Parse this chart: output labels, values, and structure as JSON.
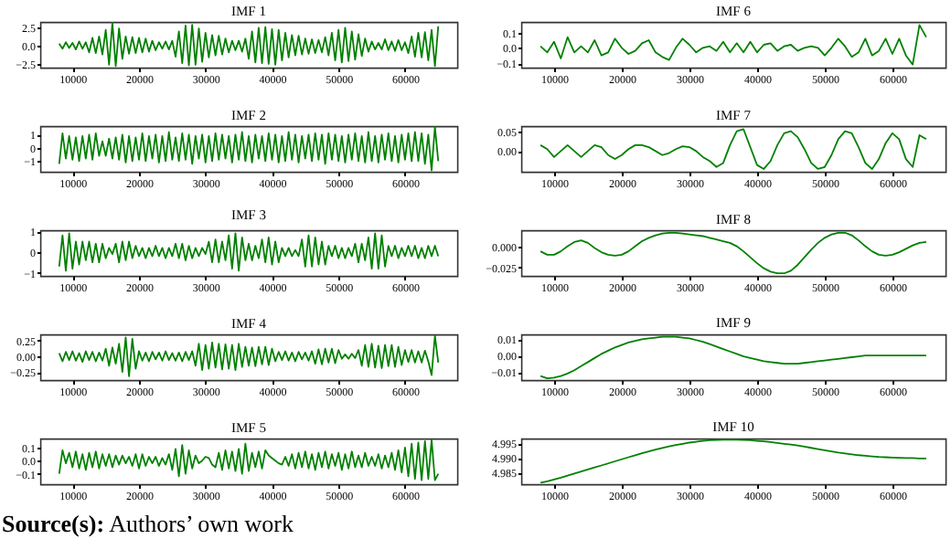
{
  "chart_data": [
    {
      "type": "line",
      "title": "IMF 1",
      "x": [
        8000,
        8500,
        9000,
        9500,
        10000,
        10500,
        11000,
        11500,
        12000,
        12500,
        13000,
        13500,
        14000,
        14500,
        15000,
        15500,
        16000,
        16500,
        17000,
        17500,
        18000,
        18500,
        19000,
        19500,
        20000,
        20500,
        21000,
        21500,
        22000,
        22500,
        23000,
        23500,
        24000,
        24500,
        25000,
        25500,
        26000,
        26500,
        27000,
        27500,
        28000,
        28500,
        29000,
        29500,
        30000,
        30500,
        31000,
        31500,
        32000,
        32500,
        33000,
        33500,
        34000,
        34500,
        35000,
        35500,
        36000,
        36500,
        37000,
        37500,
        38000,
        38500,
        39000,
        39500,
        40000,
        40500,
        41000,
        41500,
        42000,
        42500,
        43000,
        43500,
        44000,
        44500,
        45000,
        45500,
        46000,
        46500,
        47000,
        47500,
        48000,
        48500,
        49000,
        49500,
        50000,
        50500,
        51000,
        51500,
        52000,
        52500,
        53000,
        53500,
        54000,
        54500,
        55000,
        55500,
        56000,
        56500,
        57000,
        57500,
        58000,
        58500,
        59000,
        59500,
        60000,
        60500,
        61000,
        61500,
        62000,
        62500,
        63000,
        63500,
        64000,
        64500,
        65000
      ],
      "series": [
        {
          "color": "#008000",
          "values": [
            0.3,
            -0.4,
            0.5,
            -0.3,
            0.4,
            -0.5,
            0.6,
            -0.4,
            0.5,
            -0.9,
            1.1,
            -1.0,
            1.3,
            -1.2,
            2.2,
            -2.6,
            3.2,
            -2.8,
            2.4,
            -1.8,
            1.3,
            -1.1,
            1.2,
            -1.0,
            1.1,
            -0.9,
            1.0,
            -0.8,
            0.7,
            -0.6,
            0.5,
            -0.4,
            0.6,
            -0.5,
            0.7,
            -1.5,
            2.0,
            -2.4,
            2.8,
            -2.7,
            2.9,
            -2.6,
            2.4,
            -2.2,
            1.8,
            -1.6,
            1.5,
            -1.3,
            1.4,
            -1.2,
            1.0,
            -0.9,
            0.7,
            -0.6,
            0.7,
            -0.8,
            1.0,
            -1.8,
            2.0,
            -2.3,
            2.5,
            -2.4,
            2.6,
            -2.5,
            2.3,
            -2.6,
            2.2,
            -2.0,
            1.8,
            -1.6,
            1.5,
            -1.3,
            1.4,
            -1.2,
            1.0,
            -1.1,
            0.9,
            -1.0,
            0.8,
            -0.9,
            1.2,
            -1.3,
            1.8,
            -2.0,
            2.2,
            -2.3,
            2.5,
            -2.1,
            2.0,
            -1.9,
            1.6,
            -1.4,
            1.0,
            -0.8,
            0.6,
            -0.5,
            0.4,
            -0.5,
            0.9,
            -0.6,
            0.6,
            -0.7,
            0.8,
            -0.6,
            0.5,
            -1.0,
            1.3,
            -1.5,
            1.8,
            -1.6,
            1.9,
            -2.0,
            2.2,
            -2.8,
            2.7
          ]
        }
      ],
      "xlim": [
        5150,
        67850
      ],
      "xticks": [
        10000,
        20000,
        30000,
        40000,
        50000,
        60000
      ],
      "ylim": [
        -3.0,
        3.3
      ],
      "yticks": [
        {
          "value": -2.5,
          "label": "−2.5"
        },
        {
          "value": 0,
          "label": "0.0"
        },
        2.5
      ]
    },
    {
      "type": "line",
      "title": "IMF 2",
      "x": [
        8000,
        8500,
        9000,
        9500,
        10000,
        10500,
        11000,
        11500,
        12000,
        12500,
        13000,
        13500,
        14000,
        14500,
        15000,
        15500,
        16000,
        16500,
        17000,
        17500,
        18000,
        18500,
        19000,
        19500,
        20000,
        20500,
        21000,
        21500,
        22000,
        22500,
        23000,
        23500,
        24000,
        24500,
        25000,
        25500,
        26000,
        26500,
        27000,
        27500,
        28000,
        28500,
        29000,
        29500,
        30000,
        30500,
        31000,
        31500,
        32000,
        32500,
        33000,
        33500,
        34000,
        34500,
        35000,
        35500,
        36000,
        36500,
        37000,
        37500,
        38000,
        38500,
        39000,
        39500,
        40000,
        40500,
        41000,
        41500,
        42000,
        42500,
        43000,
        43500,
        44000,
        44500,
        45000,
        45500,
        46000,
        46500,
        47000,
        47500,
        48000,
        48500,
        49000,
        49500,
        50000,
        50500,
        51000,
        51500,
        52000,
        52500,
        53000,
        53500,
        54000,
        54500,
        55000,
        55500,
        56000,
        56500,
        57000,
        57500,
        58000,
        58500,
        59000,
        59500,
        60000,
        60500,
        61000,
        61500,
        62000,
        62500,
        63000,
        63500,
        64000,
        64500,
        65000
      ],
      "series": [
        {
          "color": "#008000",
          "values": [
            -1.2,
            1.1,
            -0.8,
            0.9,
            -0.9,
            0.8,
            -1.0,
            0.9,
            -0.8,
            1.0,
            -0.9,
            1.1,
            -0.6,
            0.5,
            -0.6,
            0.7,
            -0.8,
            0.8,
            -0.9,
            1.0,
            -1.1,
            0.9,
            -1.0,
            0.8,
            -0.9,
            1.1,
            -1.0,
            0.9,
            -0.8,
            1.0,
            -1.1,
            0.9,
            -1.0,
            1.2,
            -0.9,
            0.8,
            -1.0,
            1.1,
            -0.9,
            1.0,
            -1.2,
            0.9,
            -0.8,
            1.0,
            -1.1,
            0.9,
            -1.0,
            1.1,
            -0.9,
            1.0,
            -0.8,
            0.9,
            -1.1,
            1.0,
            -0.9,
            1.2,
            -1.0,
            0.9,
            -1.1,
            1.0,
            -0.8,
            0.9,
            -1.0,
            1.1,
            -0.9,
            1.0,
            -1.1,
            0.9,
            -1.0,
            1.2,
            -0.9,
            1.0,
            -1.1,
            0.9,
            -0.8,
            1.0,
            -1.0,
            1.1,
            -0.9,
            1.0,
            -1.2,
            1.1,
            -0.9,
            1.0,
            -1.0,
            0.9,
            -1.1,
            1.0,
            -0.9,
            1.1,
            -1.0,
            0.9,
            -1.1,
            1.2,
            -1.0,
            0.9,
            -1.1,
            1.0,
            -0.9,
            1.1,
            -1.0,
            0.9,
            -1.1,
            1.0,
            -0.9,
            1.1,
            -1.0,
            1.2,
            -1.0,
            1.1,
            -1.2,
            1.0,
            -1.7,
            1.6,
            -1.0
          ]
        }
      ],
      "xlim": [
        5150,
        67850
      ],
      "xticks": [
        10000,
        20000,
        30000,
        40000,
        50000,
        60000
      ],
      "ylim": [
        -1.8,
        1.65
      ],
      "yticks": [
        {
          "value": -1,
          "label": "−1"
        },
        0,
        1
      ]
    },
    {
      "type": "line",
      "title": "IMF 3",
      "x": [
        8000,
        8500,
        9000,
        9500,
        10000,
        10500,
        11000,
        11500,
        12000,
        12500,
        13000,
        13500,
        14000,
        14500,
        15000,
        15500,
        16000,
        16500,
        17000,
        17500,
        18000,
        18500,
        19000,
        19500,
        20000,
        20500,
        21000,
        21500,
        22000,
        22500,
        23000,
        23500,
        24000,
        24500,
        25000,
        25500,
        26000,
        26500,
        27000,
        27500,
        28000,
        28500,
        29000,
        29500,
        30000,
        30500,
        31000,
        31500,
        32000,
        32500,
        33000,
        33500,
        34000,
        34500,
        35000,
        35500,
        36000,
        36500,
        37000,
        37500,
        38000,
        38500,
        39000,
        39500,
        40000,
        40500,
        41000,
        41500,
        42000,
        42500,
        43000,
        43500,
        44000,
        44500,
        45000,
        45500,
        46000,
        46500,
        47000,
        47500,
        48000,
        48500,
        49000,
        49500,
        50000,
        50500,
        51000,
        51500,
        52000,
        52500,
        53000,
        53500,
        54000,
        54500,
        55000,
        55500,
        56000,
        56500,
        57000,
        57500,
        58000,
        58500,
        59000,
        59500,
        60000,
        60500,
        61000,
        61500,
        62000,
        62500,
        63000,
        63500,
        64000,
        64500,
        65000
      ],
      "series": [
        {
          "color": "#008000",
          "values": [
            -0.7,
            0.8,
            -0.9,
            0.9,
            -0.8,
            0.5,
            -0.6,
            0.5,
            -0.4,
            0.5,
            -0.5,
            0.4,
            -0.5,
            0.4,
            -0.3,
            0.2,
            -0.1,
            0.4,
            -0.5,
            0.5,
            -0.4,
            0.5,
            -0.3,
            0.3,
            -0.2,
            0.2,
            -0.3,
            0.2,
            -0.2,
            0.3,
            -0.2,
            0.2,
            -0.3,
            0.2,
            -0.2,
            0.4,
            -0.3,
            0.4,
            -0.4,
            0.3,
            -0.3,
            0.2,
            -0.2,
            0.2,
            -0.1,
            0.5,
            -0.5,
            0.6,
            -0.5,
            0.5,
            -0.4,
            0.8,
            -0.8,
            0.9,
            -0.9,
            0.7,
            -0.4,
            0.4,
            -0.4,
            0.3,
            -0.3,
            0.6,
            -0.5,
            0.7,
            -0.6,
            0.5,
            -0.5,
            0.2,
            -0.2,
            0.2,
            -0.2,
            0.1,
            -0.2,
            0.6,
            -0.7,
            0.8,
            -0.7,
            0.7,
            -0.6,
            0.5,
            -0.6,
            0.3,
            -0.2,
            0.3,
            -0.3,
            0.2,
            -0.3,
            0.2,
            -0.2,
            0.4,
            -0.5,
            0.4,
            -0.4,
            0.7,
            -0.8,
            0.9,
            -0.8,
            0.8,
            -0.7,
            0.3,
            -0.2,
            0.3,
            -0.3,
            0.2,
            -0.2,
            0.3,
            -0.2,
            0.3,
            -0.3,
            0.2,
            -0.3,
            0.3,
            -0.2,
            0.3,
            -0.2
          ]
        }
      ],
      "xlim": [
        5150,
        67850
      ],
      "xticks": [
        10000,
        20000,
        30000,
        40000,
        50000,
        60000
      ],
      "ylim": [
        -1.15,
        1.05
      ],
      "yticks": [
        {
          "value": -1,
          "label": "−1"
        },
        0,
        1
      ]
    },
    {
      "type": "line",
      "title": "IMF 4",
      "x": [
        8000,
        8500,
        9000,
        9500,
        10000,
        10500,
        11000,
        11500,
        12000,
        12500,
        13000,
        13500,
        14000,
        14500,
        15000,
        15500,
        16000,
        16500,
        17000,
        17500,
        18000,
        18500,
        19000,
        19500,
        20000,
        20500,
        21000,
        21500,
        22000,
        22500,
        23000,
        23500,
        24000,
        24500,
        25000,
        25500,
        26000,
        26500,
        27000,
        27500,
        28000,
        28500,
        29000,
        29500,
        30000,
        30500,
        31000,
        31500,
        32000,
        32500,
        33000,
        33500,
        34000,
        34500,
        35000,
        35500,
        36000,
        36500,
        37000,
        37500,
        38000,
        38500,
        39000,
        39500,
        40000,
        40500,
        41000,
        41500,
        42000,
        42500,
        43000,
        43500,
        44000,
        44500,
        45000,
        45500,
        46000,
        46500,
        47000,
        47500,
        48000,
        48500,
        49000,
        49500,
        50000,
        50500,
        51000,
        51500,
        52000,
        52500,
        53000,
        53500,
        54000,
        54500,
        55000,
        55500,
        56000,
        56500,
        57000,
        57500,
        58000,
        58500,
        59000,
        59500,
        60000,
        60500,
        61000,
        61500,
        62000,
        62500,
        63000,
        63500,
        64000,
        64500,
        65000
      ],
      "series": [
        {
          "color": "#008000",
          "values": [
            0.05,
            -0.08,
            0.07,
            -0.06,
            0.08,
            -0.07,
            0.05,
            -0.09,
            0.08,
            -0.06,
            0.07,
            -0.08,
            0.06,
            -0.07,
            0.12,
            -0.15,
            0.14,
            -0.12,
            0.2,
            -0.25,
            0.3,
            -0.32,
            0.28,
            -0.2,
            0.08,
            -0.07,
            0.06,
            -0.08,
            0.07,
            -0.05,
            0.06,
            -0.07,
            0.08,
            -0.06,
            0.05,
            -0.07,
            0.06,
            -0.08,
            0.07,
            -0.06,
            0.08,
            -0.15,
            0.2,
            -0.22,
            0.18,
            -0.2,
            0.22,
            -0.18,
            0.2,
            -0.21,
            0.19,
            -0.2,
            0.18,
            -0.22,
            0.2,
            -0.17,
            0.15,
            -0.15,
            0.14,
            -0.16,
            0.15,
            -0.13,
            0.15,
            -0.14,
            0.12,
            -0.08,
            0.07,
            -0.06,
            0.08,
            -0.07,
            0.06,
            -0.08,
            0.07,
            -0.05,
            0.06,
            -0.07,
            0.08,
            -0.12,
            0.11,
            -0.13,
            0.12,
            -0.1,
            0.12,
            -0.11,
            0.1,
            -0.04,
            0.03,
            -0.04,
            0.04,
            -0.03,
            0.1,
            -0.15,
            0.18,
            -0.17,
            0.2,
            -0.18,
            0.17,
            -0.19,
            0.18,
            -0.16,
            0.18,
            -0.17,
            0.15,
            -0.14,
            0.1,
            -0.09,
            0.1,
            -0.1,
            0.08,
            -0.1,
            0.09,
            -0.08,
            -0.3,
            0.33,
            -0.1
          ]
        }
      ],
      "xlim": [
        5150,
        67850
      ],
      "xticks": [
        10000,
        20000,
        30000,
        40000,
        50000,
        60000
      ],
      "ylim": [
        -0.38,
        0.35
      ],
      "yticks": [
        {
          "value": -0.25,
          "label": "−0.25"
        },
        {
          "value": 0,
          "label": "0.00"
        },
        0.25
      ]
    },
    {
      "type": "line",
      "title": "IMF 5",
      "x": [
        8000,
        8500,
        9000,
        9500,
        10000,
        10500,
        11000,
        11500,
        12000,
        12500,
        13000,
        13500,
        14000,
        14500,
        15000,
        15500,
        16000,
        16500,
        17000,
        17500,
        18000,
        18500,
        19000,
        19500,
        20000,
        20500,
        21000,
        21500,
        22000,
        22500,
        23000,
        23500,
        24000,
        24500,
        25000,
        25500,
        26000,
        26500,
        27000,
        27500,
        28000,
        28500,
        29000,
        29500,
        30000,
        30500,
        31000,
        31500,
        32000,
        32500,
        33000,
        33500,
        34000,
        34500,
        35000,
        35500,
        36000,
        36500,
        37000,
        37500,
        38000,
        38500,
        39000,
        39500,
        40000,
        40500,
        41000,
        41500,
        42000,
        42500,
        43000,
        43500,
        44000,
        44500,
        45000,
        45500,
        46000,
        46500,
        47000,
        47500,
        48000,
        48500,
        49000,
        49500,
        50000,
        50500,
        51000,
        51500,
        52000,
        52500,
        53000,
        53500,
        54000,
        54500,
        55000,
        55500,
        56000,
        56500,
        57000,
        57500,
        58000,
        58500,
        59000,
        59500,
        60000,
        60500,
        61000,
        61500,
        62000,
        62500,
        63000,
        63500,
        64000,
        64500,
        65000
      ],
      "series": [
        {
          "color": "#008000",
          "values": [
            -0.1,
            0.08,
            -0.02,
            0.06,
            -0.05,
            0.07,
            -0.06,
            0.05,
            -0.07,
            0.06,
            -0.05,
            0.07,
            -0.06,
            0.05,
            -0.04,
            0.05,
            -0.05,
            0.04,
            -0.03,
            0.04,
            -0.02,
            0.03,
            -0.04,
            0.05,
            -0.06,
            0.05,
            -0.04,
            0.03,
            -0.02,
            0.03,
            -0.04,
            0.02,
            -0.03,
            0.05,
            -0.07,
            0.09,
            -0.12,
            0.12,
            -0.1,
            0.08,
            -0.06,
            0.04,
            -0.02,
            0.0,
            0.03,
            0.02,
            -0.03,
            -0.05,
            0.06,
            -0.07,
            0.08,
            -0.06,
            0.07,
            -0.08,
            0.09,
            -0.1,
            0.13,
            -0.08,
            0.06,
            -0.05,
            0.07,
            -0.06,
            0.08,
            0.04,
            0.02,
            0.0,
            -0.02,
            -0.03,
            0.03,
            -0.04,
            0.05,
            -0.06,
            0.06,
            -0.05,
            0.07,
            -0.06,
            0.05,
            -0.07,
            0.06,
            -0.05,
            0.07,
            -0.06,
            0.05,
            -0.04,
            0.06,
            -0.07,
            0.05,
            -0.06,
            0.07,
            -0.05,
            0.04,
            -0.05,
            0.06,
            -0.04,
            0.03,
            -0.04,
            0.05,
            -0.06,
            0.04,
            -0.05,
            0.06,
            -0.07,
            0.08,
            -0.09,
            0.1,
            -0.12,
            0.13,
            -0.14,
            0.14,
            -0.15,
            0.15,
            -0.14,
            0.16,
            -0.15,
            -0.1
          ]
        }
      ],
      "xlim": [
        5150,
        67850
      ],
      "xticks": [
        10000,
        20000,
        30000,
        40000,
        50000,
        60000
      ],
      "ylim": [
        -0.18,
        0.17
      ],
      "yticks": [
        {
          "value": -0.1,
          "label": "−0.1"
        },
        {
          "value": 0,
          "label": "0.0"
        },
        0.1
      ],
      "annotations": [
        "Source(s): Authors’ own work"
      ]
    },
    {
      "type": "line",
      "title": "IMF 6",
      "x": [
        8000,
        9000,
        10000,
        11000,
        12000,
        13000,
        14000,
        15000,
        16000,
        17000,
        18000,
        19000,
        20000,
        21000,
        22000,
        23000,
        24000,
        25000,
        26000,
        27000,
        28000,
        29000,
        30000,
        31000,
        32000,
        33000,
        34000,
        35000,
        36000,
        37000,
        38000,
        39000,
        40000,
        41000,
        42000,
        43000,
        44000,
        45000,
        46000,
        47000,
        48000,
        49000,
        50000,
        51000,
        52000,
        53000,
        54000,
        55000,
        56000,
        57000,
        58000,
        59000,
        60000,
        61000,
        62000,
        63000,
        64000,
        65000
      ],
      "series": [
        {
          "color": "#008000",
          "values": [
            0.01,
            -0.03,
            0.04,
            -0.07,
            0.07,
            -0.03,
            0.01,
            -0.03,
            0.05,
            -0.05,
            -0.03,
            0.06,
            0.0,
            -0.04,
            -0.02,
            0.03,
            0.05,
            -0.03,
            -0.06,
            -0.08,
            0.0,
            0.06,
            0.02,
            -0.03,
            0.0,
            0.01,
            -0.02,
            0.04,
            -0.03,
            0.03,
            -0.03,
            0.04,
            -0.03,
            0.02,
            0.03,
            -0.02,
            0.01,
            0.02,
            -0.02,
            0.0,
            0.01,
            0.0,
            -0.05,
            0.0,
            0.06,
            0.01,
            -0.06,
            -0.03,
            0.06,
            -0.05,
            -0.02,
            0.06,
            -0.04,
            0.06,
            -0.05,
            -0.11,
            0.15,
            0.07
          ]
        }
      ],
      "xlim": [
        5150,
        67850
      ],
      "xticks": [
        10000,
        20000,
        30000,
        40000,
        50000,
        60000
      ],
      "ylim": [
        -0.13,
        0.17
      ],
      "yticks": [
        {
          "value": -0.1,
          "label": "−0.1"
        },
        {
          "value": 0,
          "label": "0.0"
        },
        0.1
      ]
    },
    {
      "type": "line",
      "title": "IMF 7",
      "x": [
        8000,
        9000,
        10000,
        11000,
        12000,
        13000,
        14000,
        15000,
        16000,
        17000,
        18000,
        19000,
        20000,
        21000,
        22000,
        23000,
        24000,
        25000,
        26000,
        27000,
        28000,
        29000,
        30000,
        31000,
        32000,
        33000,
        34000,
        35000,
        36000,
        37000,
        38000,
        39000,
        40000,
        41000,
        42000,
        43000,
        44000,
        45000,
        46000,
        47000,
        48000,
        49000,
        50000,
        51000,
        52000,
        53000,
        54000,
        55000,
        56000,
        57000,
        58000,
        59000,
        60000,
        61000,
        62000,
        63000,
        64000,
        65000
      ],
      "series": [
        {
          "color": "#008000",
          "values": [
            0.015,
            0.005,
            -0.015,
            0.0,
            0.015,
            0.0,
            -0.015,
            0.0,
            0.015,
            0.01,
            -0.01,
            -0.02,
            -0.01,
            0.005,
            0.015,
            0.015,
            0.01,
            0.0,
            -0.01,
            -0.005,
            0.005,
            0.012,
            0.01,
            0.0,
            -0.015,
            -0.025,
            -0.04,
            -0.03,
            0.015,
            0.05,
            0.055,
            0.01,
            -0.035,
            -0.045,
            -0.025,
            0.015,
            0.045,
            0.05,
            0.035,
            0.005,
            -0.03,
            -0.045,
            -0.04,
            -0.01,
            0.03,
            0.05,
            0.045,
            0.01,
            -0.03,
            -0.045,
            -0.02,
            0.02,
            0.045,
            0.03,
            -0.02,
            -0.04,
            0.04,
            0.03
          ]
        }
      ],
      "xlim": [
        5150,
        67850
      ],
      "xticks": [
        10000,
        20000,
        30000,
        40000,
        50000,
        60000
      ],
      "ylim": [
        -0.052,
        0.063
      ],
      "yticks": [
        {
          "value": 0,
          "label": "0.00"
        },
        0.05
      ]
    },
    {
      "type": "line",
      "title": "IMF 8",
      "x": [
        8000,
        9000,
        10000,
        11000,
        12000,
        13000,
        14000,
        15000,
        16000,
        17000,
        18000,
        19000,
        20000,
        21000,
        22000,
        23000,
        24000,
        25000,
        26000,
        27000,
        28000,
        29000,
        30000,
        31000,
        32000,
        33000,
        34000,
        35000,
        36000,
        37000,
        38000,
        39000,
        40000,
        41000,
        42000,
        43000,
        44000,
        45000,
        46000,
        47000,
        48000,
        49000,
        50000,
        51000,
        52000,
        53000,
        54000,
        55000,
        56000,
        57000,
        58000,
        59000,
        60000,
        61000,
        62000,
        63000,
        64000,
        65000
      ],
      "series": [
        {
          "color": "#008000",
          "values": [
            -0.006,
            -0.01,
            -0.01,
            -0.006,
            0.0,
            0.005,
            0.007,
            0.004,
            -0.002,
            -0.007,
            -0.01,
            -0.011,
            -0.01,
            -0.006,
            0.0,
            0.006,
            0.01,
            0.013,
            0.015,
            0.016,
            0.016,
            0.015,
            0.014,
            0.013,
            0.012,
            0.01,
            0.008,
            0.006,
            0.004,
            0.0,
            -0.006,
            -0.013,
            -0.02,
            -0.026,
            -0.03,
            -0.032,
            -0.032,
            -0.029,
            -0.022,
            -0.013,
            -0.004,
            0.004,
            0.01,
            0.014,
            0.016,
            0.016,
            0.013,
            0.007,
            0.0,
            -0.006,
            -0.01,
            -0.011,
            -0.01,
            -0.007,
            -0.003,
            0.001,
            0.004,
            0.005
          ]
        }
      ],
      "xlim": [
        5150,
        67850
      ],
      "xticks": [
        10000,
        20000,
        30000,
        40000,
        50000,
        60000
      ],
      "ylim": [
        -0.035,
        0.019
      ],
      "yticks": [
        {
          "value": -0.025,
          "label": "−0.025"
        },
        {
          "value": 0,
          "label": "0.000"
        }
      ]
    },
    {
      "type": "line",
      "title": "IMF 9",
      "x": [
        8000,
        9000,
        10000,
        11000,
        12000,
        13000,
        14000,
        15000,
        16000,
        17000,
        18000,
        19000,
        20000,
        21000,
        22000,
        23000,
        24000,
        25000,
        26000,
        27000,
        28000,
        29000,
        30000,
        31000,
        32000,
        33000,
        34000,
        35000,
        36000,
        37000,
        38000,
        39000,
        40000,
        41000,
        42000,
        43000,
        44000,
        45000,
        46000,
        47000,
        48000,
        49000,
        50000,
        51000,
        52000,
        53000,
        54000,
        55000,
        56000,
        57000,
        58000,
        59000,
        60000,
        61000,
        62000,
        63000,
        64000,
        65000
      ],
      "series": [
        {
          "color": "#008000",
          "values": [
            -0.0125,
            -0.014,
            -0.0135,
            -0.0125,
            -0.011,
            -0.009,
            -0.0065,
            -0.004,
            -0.0015,
            0.001,
            0.003,
            0.005,
            0.0065,
            0.008,
            0.009,
            0.01,
            0.0105,
            0.011,
            0.0115,
            0.0115,
            0.0115,
            0.011,
            0.0105,
            0.0095,
            0.0085,
            0.007,
            0.0055,
            0.004,
            0.0025,
            0.001,
            -0.0005,
            -0.0015,
            -0.0025,
            -0.0035,
            -0.004,
            -0.0045,
            -0.005,
            -0.005,
            -0.005,
            -0.0045,
            -0.004,
            -0.0035,
            -0.003,
            -0.0025,
            -0.002,
            -0.0015,
            -0.001,
            -0.0005,
            0.0,
            0.0,
            0.0,
            0.0,
            0.0,
            0.0,
            0.0,
            0.0,
            0.0,
            0.0
          ]
        }
      ],
      "xlim": [
        5150,
        67850
      ],
      "xticks": [
        10000,
        20000,
        30000,
        40000,
        50000,
        60000
      ],
      "ylim": [
        -0.015,
        0.013
      ],
      "yticks": [
        {
          "value": -0.01,
          "label": "−0.01"
        },
        {
          "value": 0,
          "label": "0.00"
        },
        0.01
      ]
    },
    {
      "type": "line",
      "title": "IMF 10",
      "x": [
        8000,
        9000,
        10000,
        11000,
        12000,
        13000,
        14000,
        15000,
        16000,
        17000,
        18000,
        19000,
        20000,
        21000,
        22000,
        23000,
        24000,
        25000,
        26000,
        27000,
        28000,
        29000,
        30000,
        31000,
        32000,
        33000,
        34000,
        35000,
        36000,
        37000,
        38000,
        39000,
        40000,
        41000,
        42000,
        43000,
        44000,
        45000,
        46000,
        47000,
        48000,
        49000,
        50000,
        51000,
        52000,
        53000,
        54000,
        55000,
        56000,
        57000,
        58000,
        59000,
        60000,
        61000,
        62000,
        63000,
        64000,
        65000
      ],
      "series": [
        {
          "color": "#008000",
          "values": [
            4.9815,
            4.982,
            4.9826,
            4.9832,
            4.9839,
            4.9846,
            4.9853,
            4.986,
            4.9867,
            4.9874,
            4.9881,
            4.9888,
            4.9895,
            4.9902,
            4.9909,
            4.9916,
            4.9922,
            4.9928,
            4.9934,
            4.9939,
            4.9944,
            4.9948,
            4.9952,
            4.9955,
            4.9958,
            4.996,
            4.9961,
            4.9962,
            4.9962,
            4.9962,
            4.9961,
            4.996,
            4.9958,
            4.9956,
            4.9954,
            4.9951,
            4.9948,
            4.9945,
            4.9942,
            4.9938,
            4.9934,
            4.993,
            4.9926,
            4.9922,
            4.9918,
            4.9915,
            4.9912,
            4.9909,
            4.9907,
            4.9905,
            4.9903,
            4.9902,
            4.9901,
            4.99,
            4.9899,
            4.9899,
            4.9898,
            4.9898
          ]
        }
      ],
      "xlim": [
        5150,
        67850
      ],
      "xticks": [
        10000,
        20000,
        30000,
        40000,
        50000,
        60000
      ],
      "ylim": [
        4.981,
        4.9966
      ],
      "yticks": [
        4.985,
        {
          "value": 4.99,
          "label": "4.990"
        },
        4.995
      ]
    }
  ]
}
